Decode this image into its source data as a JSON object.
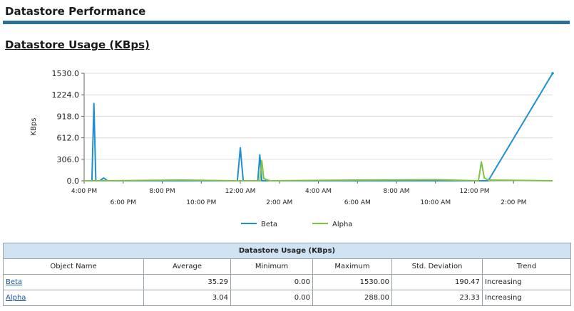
{
  "page": {
    "title": "Datastore Performance",
    "section_title": "Datastore Usage (KBps)"
  },
  "chart_data": {
    "type": "line",
    "ylabel": "KBps",
    "ylim": [
      0,
      1530
    ],
    "yticks": [
      "1530.0",
      "1224.0",
      "918.0",
      "612.0",
      "306.0",
      "0.0"
    ],
    "xticks_row1": [
      "4:00 PM",
      "8:00 PM",
      "12:00 AM",
      "4:00 AM",
      "8:00 AM",
      "12:00 PM"
    ],
    "xticks_row2": [
      "6:00 PM",
      "10:00 PM",
      "2:00 AM",
      "6:00 AM",
      "10:00 AM",
      "2:00 PM"
    ],
    "grid": true,
    "legend_position": "bottom",
    "x_hours_from_4pm": [
      0,
      0.2,
      0.4,
      0.5,
      0.6,
      0.8,
      1.0,
      1.2,
      5.0,
      7.7,
      7.85,
      8.0,
      8.15,
      8.3,
      8.6,
      8.75,
      8.9,
      9.0,
      9.1,
      9.2,
      9.5,
      14.0,
      18.0,
      20.2,
      20.35,
      20.5,
      20.7,
      24.0
    ],
    "series": [
      {
        "name": "Beta",
        "color": "#1f8fd0",
        "values": [
          0,
          0,
          0,
          1100,
          0,
          0,
          40,
          0,
          0,
          0,
          0,
          470,
          0,
          0,
          0,
          0,
          0,
          370,
          0,
          0,
          0,
          0,
          0,
          0,
          0,
          0,
          0,
          1530
        ]
      },
      {
        "name": "Alpha",
        "color": "#7cc243",
        "values": [
          0,
          0,
          0,
          0,
          0,
          0,
          0,
          0,
          10,
          0,
          0,
          0,
          0,
          0,
          0,
          0,
          0,
          0,
          288,
          30,
          0,
          10,
          15,
          0,
          270,
          40,
          10,
          0
        ]
      }
    ]
  },
  "table": {
    "caption": "Datastore Usage (KBps)",
    "columns": [
      "Object Name",
      "Average",
      "Minimum",
      "Maximum",
      "Std. Deviation",
      "Trend"
    ],
    "rows": [
      {
        "name": "Beta",
        "average": "35.29",
        "minimum": "0.00",
        "maximum": "1530.00",
        "std": "190.47",
        "trend": "Increasing"
      },
      {
        "name": "Alpha",
        "average": "3.04",
        "minimum": "0.00",
        "maximum": "288.00",
        "std": "23.33",
        "trend": "Increasing"
      }
    ]
  }
}
